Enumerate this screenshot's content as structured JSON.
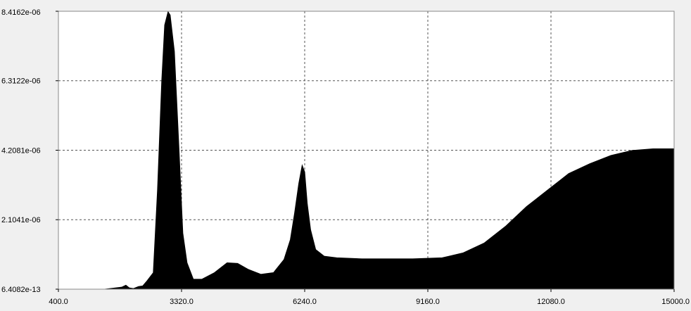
{
  "chart_data": {
    "type": "area",
    "title": "",
    "xlabel": "",
    "ylabel": "",
    "xlim": [
      400.0,
      15000.0
    ],
    "ylim": [
      6.4082e-13,
      8.4162e-06
    ],
    "x_ticks": [
      {
        "value": 400.0,
        "label": "400.0"
      },
      {
        "value": 3320.0,
        "label": "3320.0"
      },
      {
        "value": 6240.0,
        "label": "6240.0"
      },
      {
        "value": 9160.0,
        "label": "9160.0"
      },
      {
        "value": 12080.0,
        "label": "12080.0"
      },
      {
        "value": 15000.0,
        "label": "15000.0"
      }
    ],
    "y_ticks": [
      {
        "value": 6.4082e-13,
        "label": "6.4082e-13"
      },
      {
        "value": 2.1041e-06,
        "label": "2.1041e-06"
      },
      {
        "value": 4.2081e-06,
        "label": "4.2081e-06"
      },
      {
        "value": 6.3122e-06,
        "label": "6.3122e-06"
      },
      {
        "value": 8.4162e-06,
        "label": "8.4162e-06"
      }
    ],
    "grid": true,
    "fill_color": "#000000",
    "plot_background": "#ffffff",
    "series": [
      {
        "x": [
          400,
          1500,
          1900,
          2000,
          2080,
          2180,
          2300,
          2400,
          2500,
          2650,
          2750,
          2850,
          2920,
          3000,
          3050,
          3150,
          3250,
          3350,
          3450,
          3600,
          3800,
          4100,
          4400,
          4650,
          4900,
          5200,
          5500,
          5750,
          5900,
          6000,
          6100,
          6180,
          6240,
          6300,
          6380,
          6500,
          6700,
          7000,
          7600,
          8200,
          8800,
          9500,
          10000,
          10500,
          11000,
          11500,
          12000,
          12500,
          13000,
          13500,
          14000,
          14500,
          15000
        ],
        "y": [
          0,
          0,
          6e-08,
          1.2e-07,
          4e-08,
          2e-08,
          8e-08,
          1e-07,
          2.5e-07,
          5e-07,
          3e-06,
          6.3e-06,
          8e-06,
          8.4e-06,
          8.3e-06,
          7.2e-06,
          4.5e-06,
          1.7e-06,
          8e-07,
          3e-07,
          3e-07,
          5e-07,
          8e-07,
          7.8e-07,
          6e-07,
          4.5e-07,
          5e-07,
          9e-07,
          1.5e-06,
          2.3e-06,
          3.2e-06,
          3.75e-06,
          3.55e-06,
          2.6e-06,
          1.8e-06,
          1.2e-06,
          1e-06,
          9.5e-07,
          9.2e-07,
          9.2e-07,
          9.2e-07,
          9.5e-07,
          1.1e-06,
          1.4e-06,
          1.9e-06,
          2.5e-06,
          3e-06,
          3.5e-06,
          3.8e-06,
          4.05e-06,
          4.2e-06,
          4.25e-06,
          4.25e-06
        ]
      }
    ]
  }
}
